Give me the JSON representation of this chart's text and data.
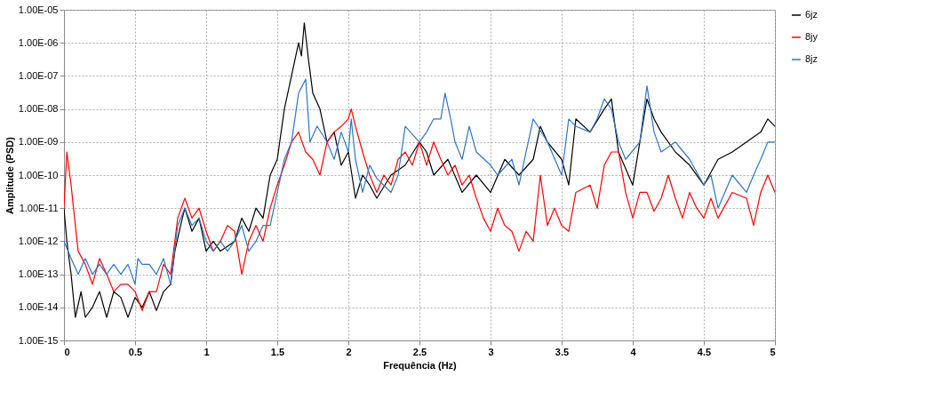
{
  "chart_data": {
    "type": "line",
    "xlabel": "Frequência (Hz)",
    "ylabel": "Amplitude (PSD)",
    "log": "y",
    "grid": true,
    "legend": "right",
    "marker": "none",
    "line_style": "solid",
    "xlim": [
      0,
      5
    ],
    "xticks": [
      0,
      0.5,
      1,
      1.5,
      2,
      2.5,
      3,
      3.5,
      4,
      4.5,
      5
    ],
    "ylim": [
      1e-15,
      1e-05
    ],
    "yticks": [
      {
        "value": 1e-15,
        "label": "1.00E-15"
      },
      {
        "value": 1e-14,
        "label": "1.00E-14"
      },
      {
        "value": 1e-13,
        "label": "1.00E-13"
      },
      {
        "value": 1e-12,
        "label": "1.00E-12"
      },
      {
        "value": 1e-11,
        "label": "1.00E-11"
      },
      {
        "value": 1e-10,
        "label": "1.00E-10"
      },
      {
        "value": 1e-09,
        "label": "1.00E-09"
      },
      {
        "value": 1e-08,
        "label": "1.00E-08"
      },
      {
        "value": 1e-07,
        "label": "1.00E-07"
      },
      {
        "value": 1e-06,
        "label": "1.00E-06"
      },
      {
        "value": 1e-05,
        "label": "1.00E-05"
      }
    ],
    "series": [
      {
        "name": "6jz",
        "color": "#000000",
        "x": [
          0,
          0.02,
          0.05,
          0.08,
          0.12,
          0.15,
          0.2,
          0.25,
          0.3,
          0.35,
          0.4,
          0.45,
          0.5,
          0.55,
          0.6,
          0.65,
          0.7,
          0.75,
          0.78,
          0.82,
          0.85,
          0.9,
          0.95,
          1.0,
          1.05,
          1.1,
          1.2,
          1.25,
          1.3,
          1.35,
          1.4,
          1.45,
          1.5,
          1.55,
          1.6,
          1.65,
          1.67,
          1.69,
          1.72,
          1.75,
          1.8,
          1.85,
          1.9,
          1.95,
          2.0,
          2.05,
          2.1,
          2.15,
          2.2,
          2.3,
          2.4,
          2.5,
          2.55,
          2.6,
          2.7,
          2.8,
          2.9,
          3.0,
          3.1,
          3.2,
          3.3,
          3.35,
          3.4,
          3.5,
          3.55,
          3.6,
          3.7,
          3.8,
          3.85,
          3.9,
          4.0,
          4.05,
          4.1,
          4.15,
          4.2,
          4.3,
          4.4,
          4.5,
          4.6,
          4.7,
          4.8,
          4.9,
          4.95,
          5.0
        ],
        "values": [
          1e-11,
          1e-12,
          1e-13,
          5e-15,
          3e-14,
          5e-15,
          1e-14,
          3e-14,
          5e-15,
          3e-14,
          2e-14,
          5e-15,
          2e-14,
          1e-14,
          3e-14,
          8e-15,
          3e-14,
          5e-14,
          5e-13,
          3e-12,
          1e-11,
          2e-12,
          5e-12,
          5e-13,
          1e-12,
          5e-13,
          1e-12,
          5e-12,
          2e-12,
          1e-11,
          5e-12,
          1e-10,
          3e-10,
          1e-08,
          1e-07,
          1e-06,
          4e-07,
          4e-06,
          3e-07,
          3e-08,
          1e-08,
          1e-09,
          2e-09,
          2e-10,
          5e-10,
          2e-11,
          1e-10,
          5e-11,
          2e-11,
          1e-10,
          2e-10,
          1e-09,
          5e-10,
          1e-10,
          3e-10,
          3e-11,
          1e-10,
          3e-11,
          3e-10,
          1e-10,
          3e-10,
          3e-09,
          1e-09,
          3e-10,
          5e-11,
          5e-09,
          2e-09,
          1e-08,
          2e-08,
          5e-10,
          5e-11,
          1e-09,
          2e-08,
          5e-09,
          2e-09,
          5e-10,
          2e-10,
          5e-11,
          3e-10,
          5e-10,
          1e-09,
          2e-09,
          5e-09,
          3e-09
        ]
      },
      {
        "name": "8jy",
        "color": "#ff0000",
        "x": [
          0,
          0.02,
          0.05,
          0.08,
          0.1,
          0.15,
          0.2,
          0.25,
          0.3,
          0.35,
          0.4,
          0.45,
          0.5,
          0.55,
          0.6,
          0.65,
          0.7,
          0.75,
          0.8,
          0.85,
          0.9,
          0.95,
          1.0,
          1.05,
          1.1,
          1.15,
          1.2,
          1.25,
          1.3,
          1.35,
          1.4,
          1.45,
          1.5,
          1.55,
          1.6,
          1.65,
          1.7,
          1.75,
          1.8,
          1.85,
          1.9,
          1.95,
          2.0,
          2.02,
          2.05,
          2.1,
          2.15,
          2.2,
          2.25,
          2.3,
          2.35,
          2.4,
          2.45,
          2.5,
          2.55,
          2.6,
          2.65,
          2.7,
          2.75,
          2.8,
          2.85,
          2.9,
          2.95,
          3.0,
          3.05,
          3.1,
          3.15,
          3.2,
          3.25,
          3.3,
          3.35,
          3.4,
          3.45,
          3.5,
          3.55,
          3.6,
          3.7,
          3.75,
          3.8,
          3.85,
          3.9,
          3.95,
          4.0,
          4.05,
          4.1,
          4.15,
          4.2,
          4.25,
          4.3,
          4.35,
          4.4,
          4.45,
          4.5,
          4.55,
          4.6,
          4.7,
          4.8,
          4.85,
          4.9,
          4.95,
          5.0
        ],
        "values": [
          1e-11,
          5e-10,
          5e-11,
          3e-12,
          5e-13,
          2e-13,
          5e-14,
          3e-13,
          1e-13,
          3e-14,
          5e-14,
          5e-14,
          3e-14,
          8e-15,
          3e-14,
          3e-14,
          2e-13,
          1e-13,
          5e-12,
          2e-11,
          5e-12,
          1e-11,
          2e-12,
          5e-13,
          1e-12,
          3e-12,
          2e-12,
          1e-13,
          1e-12,
          3e-12,
          1e-12,
          1e-11,
          5e-11,
          2e-10,
          1e-09,
          2e-09,
          5e-10,
          3e-10,
          1e-10,
          1e-09,
          2e-09,
          3e-09,
          5e-09,
          1e-08,
          3e-09,
          5e-10,
          1e-10,
          3e-11,
          1e-10,
          5e-11,
          3e-10,
          5e-10,
          2e-10,
          1e-09,
          2e-10,
          1e-09,
          3e-10,
          1e-10,
          2e-10,
          5e-11,
          1e-10,
          2e-11,
          5e-12,
          2e-12,
          1e-11,
          3e-12,
          2e-12,
          5e-13,
          2e-12,
          1e-12,
          1e-10,
          3e-12,
          1e-11,
          3e-12,
          2e-12,
          3e-11,
          5e-11,
          1e-11,
          2e-10,
          5e-10,
          5e-10,
          3e-11,
          5e-12,
          3e-11,
          3e-11,
          8e-12,
          2e-11,
          1e-10,
          2e-11,
          5e-12,
          3e-11,
          1e-11,
          5e-12,
          2e-11,
          5e-12,
          3e-11,
          2e-11,
          3e-12,
          3e-11,
          1e-10,
          3e-11
        ]
      },
      {
        "name": "8jz",
        "color": "#2e75c6",
        "x": [
          0,
          0.05,
          0.1,
          0.15,
          0.2,
          0.25,
          0.3,
          0.35,
          0.4,
          0.45,
          0.5,
          0.52,
          0.55,
          0.6,
          0.65,
          0.7,
          0.75,
          0.8,
          0.85,
          0.9,
          0.95,
          1.0,
          1.05,
          1.1,
          1.15,
          1.2,
          1.25,
          1.3,
          1.35,
          1.4,
          1.45,
          1.5,
          1.55,
          1.6,
          1.65,
          1.7,
          1.73,
          1.78,
          1.85,
          1.9,
          1.95,
          2.0,
          2.02,
          2.05,
          2.1,
          2.15,
          2.2,
          2.3,
          2.35,
          2.4,
          2.5,
          2.55,
          2.6,
          2.65,
          2.68,
          2.72,
          2.75,
          2.8,
          2.85,
          2.9,
          3.0,
          3.05,
          3.15,
          3.2,
          3.3,
          3.4,
          3.5,
          3.55,
          3.6,
          3.7,
          3.75,
          3.8,
          3.85,
          3.9,
          3.95,
          4.05,
          4.1,
          4.15,
          4.2,
          4.3,
          4.4,
          4.5,
          4.55,
          4.6,
          4.7,
          4.8,
          4.85,
          4.9,
          4.95,
          5.0
        ],
        "values": [
          1e-12,
          3e-13,
          1e-13,
          3e-13,
          1e-13,
          2e-13,
          1e-13,
          2e-13,
          1e-13,
          2e-13,
          5e-14,
          3e-13,
          2e-13,
          2e-13,
          1e-13,
          3e-13,
          5e-14,
          3e-12,
          1e-11,
          3e-12,
          5e-12,
          1e-12,
          5e-13,
          1e-12,
          5e-13,
          1e-12,
          3e-12,
          5e-13,
          1e-12,
          3e-12,
          3e-12,
          3e-11,
          3e-10,
          1e-09,
          3e-08,
          8e-08,
          1e-09,
          3e-09,
          1e-09,
          3e-10,
          2e-09,
          5e-10,
          5e-09,
          3e-10,
          3e-11,
          2e-10,
          8e-11,
          3e-11,
          1e-10,
          3e-09,
          1e-09,
          2e-09,
          5e-09,
          5e-09,
          3e-08,
          5e-09,
          1e-09,
          3e-10,
          3e-09,
          5e-10,
          2e-10,
          1e-10,
          3e-10,
          5e-11,
          5e-09,
          1e-09,
          1e-10,
          5e-09,
          3e-09,
          2e-09,
          5e-09,
          2e-08,
          1e-08,
          1e-09,
          3e-10,
          1e-09,
          5e-08,
          2e-09,
          5e-10,
          1e-09,
          3e-10,
          5e-11,
          1e-10,
          1e-11,
          1e-10,
          3e-11,
          1e-10,
          3e-10,
          1e-09,
          1e-09
        ]
      }
    ]
  }
}
